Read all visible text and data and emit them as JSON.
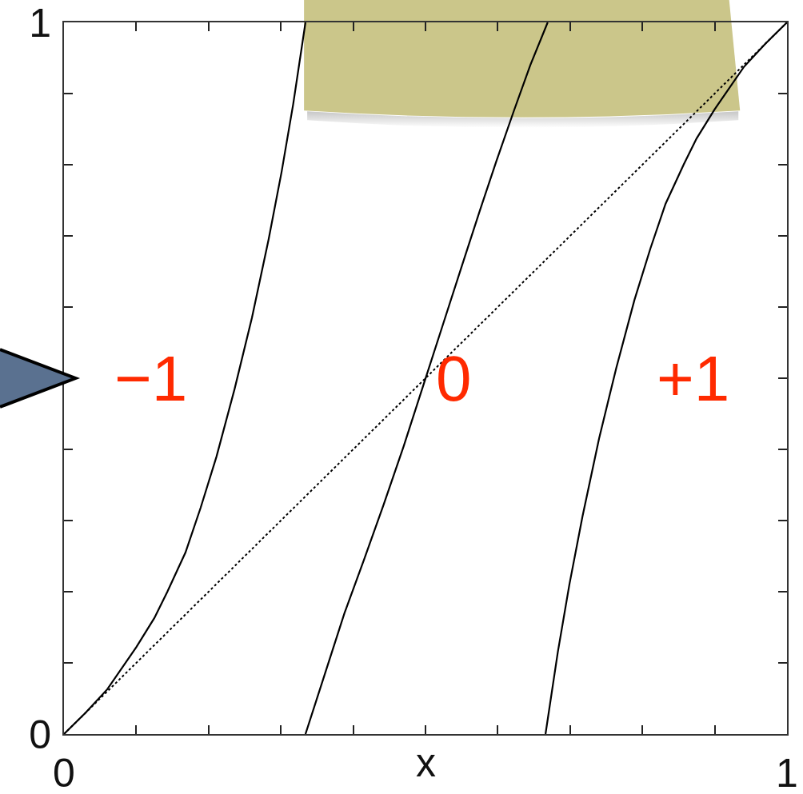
{
  "chart_data": {
    "type": "line",
    "xlabel": "x",
    "line_style": "solid",
    "xlim": [
      0,
      1
    ],
    "ylim": [
      0,
      1
    ],
    "xticks": [
      0,
      {
        "value": 0.1,
        "label": null
      },
      {
        "value": 0.2,
        "label": null
      },
      {
        "value": 0.3,
        "label": null
      },
      {
        "value": 0.4,
        "label": null
      },
      {
        "value": 0.5,
        "label": null
      },
      {
        "value": 0.6,
        "label": null
      },
      {
        "value": 0.7,
        "label": null
      },
      {
        "value": 0.8,
        "label": null
      },
      {
        "value": 0.9,
        "label": null
      },
      1
    ],
    "yticks": [
      0,
      {
        "value": 0.1,
        "label": null
      },
      {
        "value": 0.2,
        "label": null
      },
      {
        "value": 0.3,
        "label": null
      },
      {
        "value": 0.4,
        "label": null
      },
      {
        "value": 0.5,
        "label": null
      },
      {
        "value": 0.6,
        "label": null
      },
      {
        "value": 0.7,
        "label": null
      },
      {
        "value": 0.8,
        "label": null
      },
      {
        "value": 0.9,
        "label": null
      },
      1
    ],
    "series": [
      {
        "color": "#000000",
        "line_style": "dotted",
        "x": [
          0,
          1
        ],
        "values": [
          0,
          1
        ]
      },
      {
        "name": "−1",
        "color": "#000000",
        "x": [
          0,
          0.03,
          0.06,
          0.1,
          0.125,
          0.143,
          0.168,
          0.189,
          0.211,
          0.236,
          0.26,
          0.283,
          0.301,
          0.317,
          0.334
        ],
        "values": [
          0,
          0.03,
          0.063,
          0.122,
          0.163,
          0.2,
          0.255,
          0.318,
          0.39,
          0.485,
          0.585,
          0.695,
          0.79,
          0.885,
          1
        ]
      },
      {
        "name": "0",
        "color": "#000000",
        "x": [
          0.334,
          0.361,
          0.388,
          0.415,
          0.442,
          0.47,
          0.497,
          0.524,
          0.551,
          0.575,
          0.598,
          0.622,
          0.645,
          0.669
        ],
        "values": [
          0,
          0.085,
          0.17,
          0.245,
          0.322,
          0.405,
          0.49,
          0.575,
          0.66,
          0.735,
          0.805,
          0.875,
          0.94,
          1
        ]
      },
      {
        "name": "+1",
        "color": "#000000",
        "x": [
          0.666,
          0.683,
          0.699,
          0.717,
          0.74,
          0.764,
          0.789,
          0.811,
          0.832,
          0.857,
          0.875,
          0.9,
          0.94,
          0.97,
          1
        ],
        "values": [
          0,
          0.115,
          0.21,
          0.305,
          0.415,
          0.515,
          0.61,
          0.682,
          0.745,
          0.8,
          0.837,
          0.878,
          0.937,
          0.97,
          1
        ]
      }
    ]
  }
}
